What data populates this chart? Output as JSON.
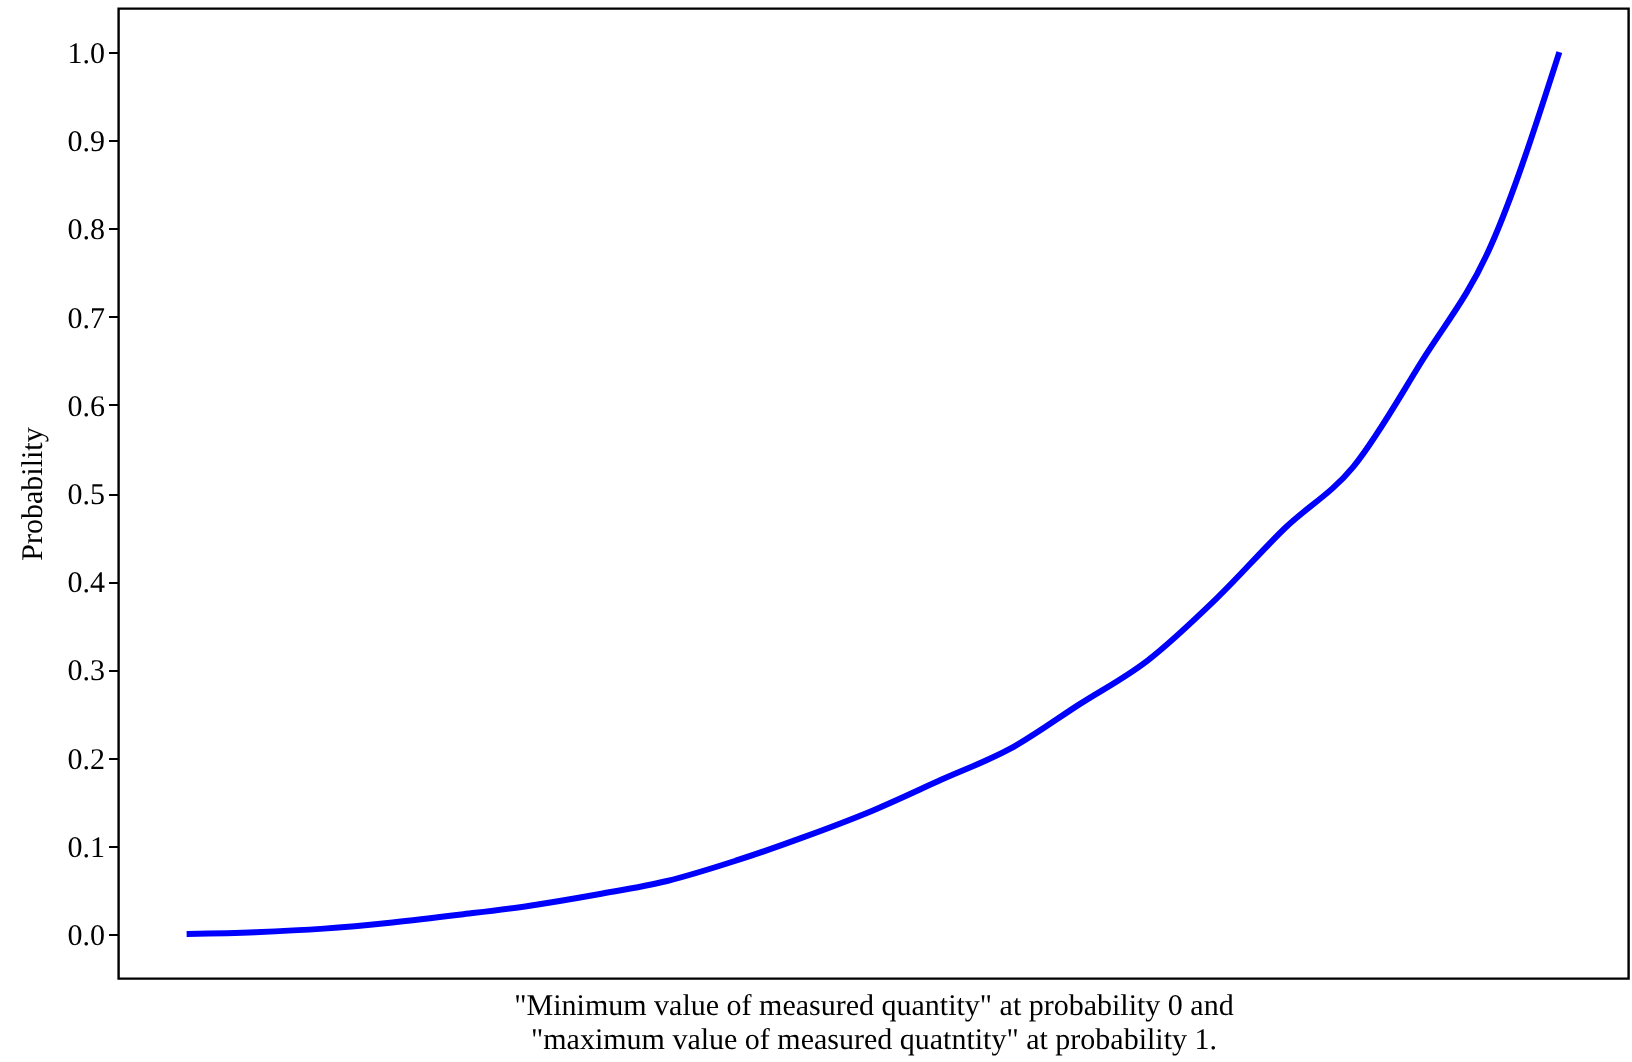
{
  "chart_data": {
    "type": "line",
    "xlabel": "\"Minimum value of measured quantity\" at probability 0 and\n\"maximum value of measured quatntity\" at probability 1.",
    "ylabel": "Probability",
    "categories": [
      null,
      null,
      null,
      null,
      null,
      null,
      null,
      null,
      null,
      null,
      null,
      null,
      null,
      null,
      null,
      null,
      null,
      null,
      null,
      null,
      null
    ],
    "series": [
      {
        "color": "#0000ff",
        "values": [
          0,
          0.002,
          0.006,
          0.013,
          0.022,
          0.032,
          0.045,
          0.06,
          0.083,
          0.11,
          0.14,
          0.175,
          0.21,
          0.26,
          0.31,
          0.38,
          0.46,
          0.53,
          0.65,
          0.78,
          1.0
        ]
      }
    ],
    "ylim": [
      -0.05,
      1.05
    ],
    "yticks": [
      {
        "value": 0,
        "label": "0.0"
      },
      0.1,
      0.2,
      0.3,
      0.4,
      0.5,
      0.6,
      0.7,
      0.8,
      0.9,
      {
        "value": 1,
        "label": "1.0"
      }
    ],
    "tick_labels": "y",
    "grid": false,
    "marker": "none",
    "line_style": "solid"
  }
}
